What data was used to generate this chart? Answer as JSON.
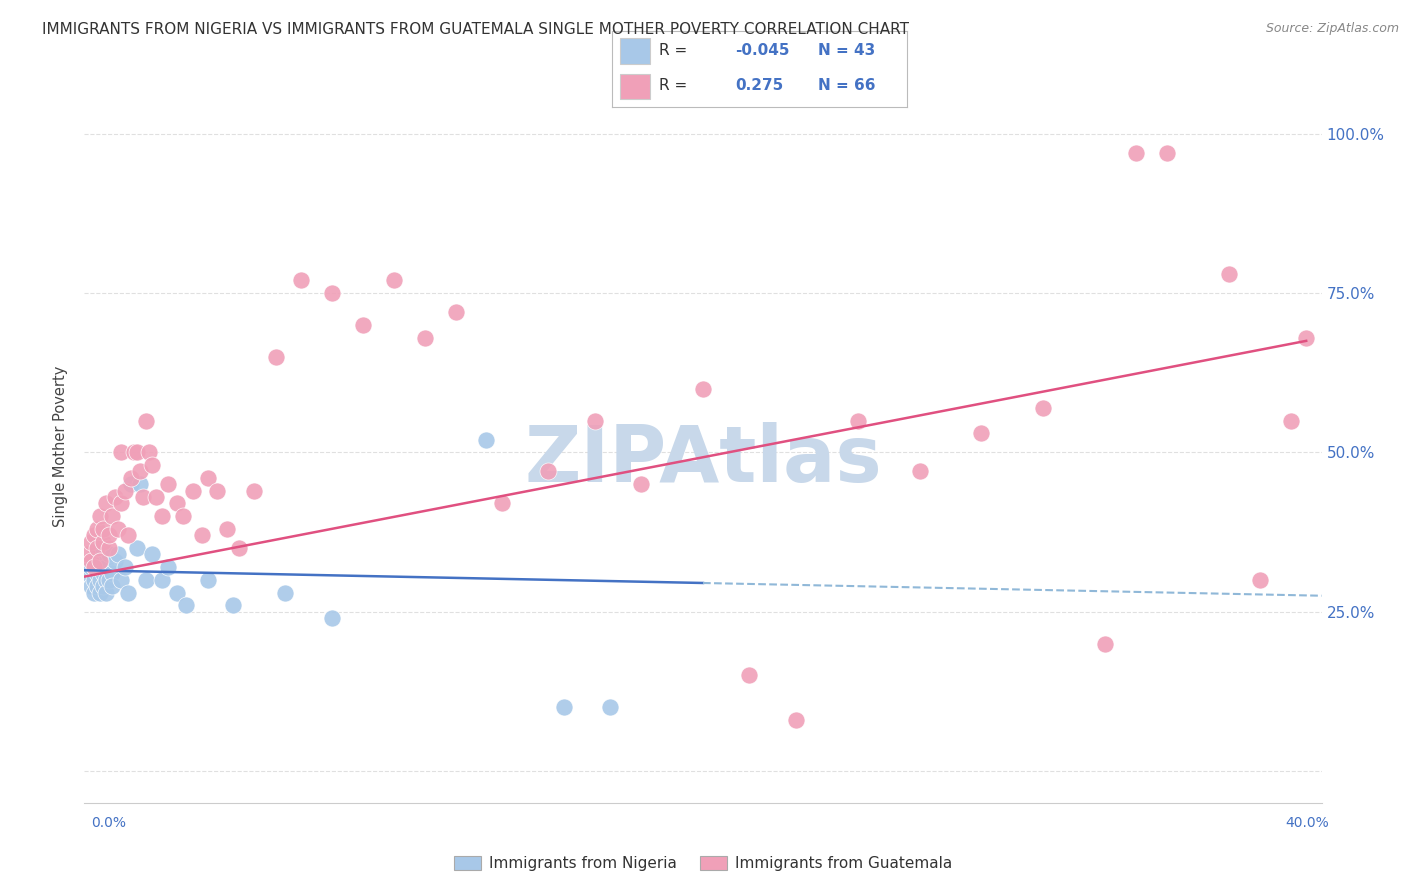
{
  "title": "IMMIGRANTS FROM NIGERIA VS IMMIGRANTS FROM GUATEMALA SINGLE MOTHER POVERTY CORRELATION CHART",
  "source": "Source: ZipAtlas.com",
  "ylabel": "Single Mother Poverty",
  "y_ticks": [
    0.0,
    0.25,
    0.5,
    0.75,
    1.0
  ],
  "y_tick_labels": [
    "",
    "25.0%",
    "50.0%",
    "75.0%",
    "100.0%"
  ],
  "xlim": [
    0.0,
    0.4
  ],
  "ylim": [
    -0.05,
    1.07
  ],
  "nigeria_R": -0.045,
  "nigeria_N": 43,
  "guatemala_R": 0.275,
  "guatemala_N": 66,
  "nigeria_color": "#a8c8e8",
  "guatemala_color": "#f0a0b8",
  "nigeria_edge_color": "#90b8d8",
  "guatemala_edge_color": "#e080a0",
  "nigeria_line_color": "#4472c4",
  "guatemala_line_color": "#e05080",
  "dashed_line_color": "#90b8d8",
  "watermark": "ZIPAtlas",
  "watermark_color": "#c8d8ea",
  "nigeria_points_x": [
    0.001,
    0.002,
    0.002,
    0.003,
    0.003,
    0.003,
    0.004,
    0.004,
    0.004,
    0.005,
    0.005,
    0.005,
    0.006,
    0.006,
    0.006,
    0.007,
    0.007,
    0.007,
    0.008,
    0.008,
    0.009,
    0.009,
    0.01,
    0.011,
    0.012,
    0.013,
    0.014,
    0.015,
    0.017,
    0.018,
    0.02,
    0.022,
    0.025,
    0.027,
    0.03,
    0.033,
    0.04,
    0.048,
    0.065,
    0.08,
    0.13,
    0.155,
    0.17
  ],
  "nigeria_points_y": [
    0.31,
    0.29,
    0.32,
    0.3,
    0.28,
    0.33,
    0.29,
    0.31,
    0.34,
    0.3,
    0.28,
    0.32,
    0.31,
    0.29,
    0.33,
    0.3,
    0.28,
    0.32,
    0.34,
    0.3,
    0.31,
    0.29,
    0.33,
    0.34,
    0.3,
    0.32,
    0.28,
    0.45,
    0.35,
    0.45,
    0.3,
    0.34,
    0.3,
    0.32,
    0.28,
    0.26,
    0.3,
    0.26,
    0.28,
    0.24,
    0.52,
    0.1,
    0.1
  ],
  "guatemala_points_x": [
    0.001,
    0.002,
    0.002,
    0.003,
    0.003,
    0.004,
    0.004,
    0.005,
    0.005,
    0.006,
    0.006,
    0.007,
    0.008,
    0.008,
    0.009,
    0.01,
    0.011,
    0.012,
    0.012,
    0.013,
    0.014,
    0.015,
    0.016,
    0.017,
    0.018,
    0.019,
    0.02,
    0.021,
    0.022,
    0.023,
    0.025,
    0.027,
    0.03,
    0.032,
    0.035,
    0.038,
    0.04,
    0.043,
    0.046,
    0.05,
    0.055,
    0.062,
    0.07,
    0.08,
    0.09,
    0.1,
    0.11,
    0.12,
    0.135,
    0.15,
    0.165,
    0.18,
    0.2,
    0.215,
    0.23,
    0.25,
    0.27,
    0.29,
    0.31,
    0.33,
    0.34,
    0.35,
    0.37,
    0.38,
    0.39,
    0.395
  ],
  "guatemala_points_y": [
    0.34,
    0.33,
    0.36,
    0.32,
    0.37,
    0.35,
    0.38,
    0.33,
    0.4,
    0.36,
    0.38,
    0.42,
    0.35,
    0.37,
    0.4,
    0.43,
    0.38,
    0.5,
    0.42,
    0.44,
    0.37,
    0.46,
    0.5,
    0.5,
    0.47,
    0.43,
    0.55,
    0.5,
    0.48,
    0.43,
    0.4,
    0.45,
    0.42,
    0.4,
    0.44,
    0.37,
    0.46,
    0.44,
    0.38,
    0.35,
    0.44,
    0.65,
    0.77,
    0.75,
    0.7,
    0.77,
    0.68,
    0.72,
    0.42,
    0.47,
    0.55,
    0.45,
    0.6,
    0.15,
    0.08,
    0.55,
    0.47,
    0.53,
    0.57,
    0.2,
    0.97,
    0.97,
    0.78,
    0.3,
    0.55,
    0.68
  ],
  "background_color": "#ffffff",
  "grid_color": "#e0e0e0",
  "nigeria_trend_x0": 0.0,
  "nigeria_trend_y0": 0.315,
  "nigeria_trend_x1": 0.2,
  "nigeria_trend_y1": 0.295,
  "guatemala_trend_x0": 0.0,
  "guatemala_trend_y0": 0.305,
  "guatemala_trend_x1": 0.395,
  "guatemala_trend_y1": 0.675
}
